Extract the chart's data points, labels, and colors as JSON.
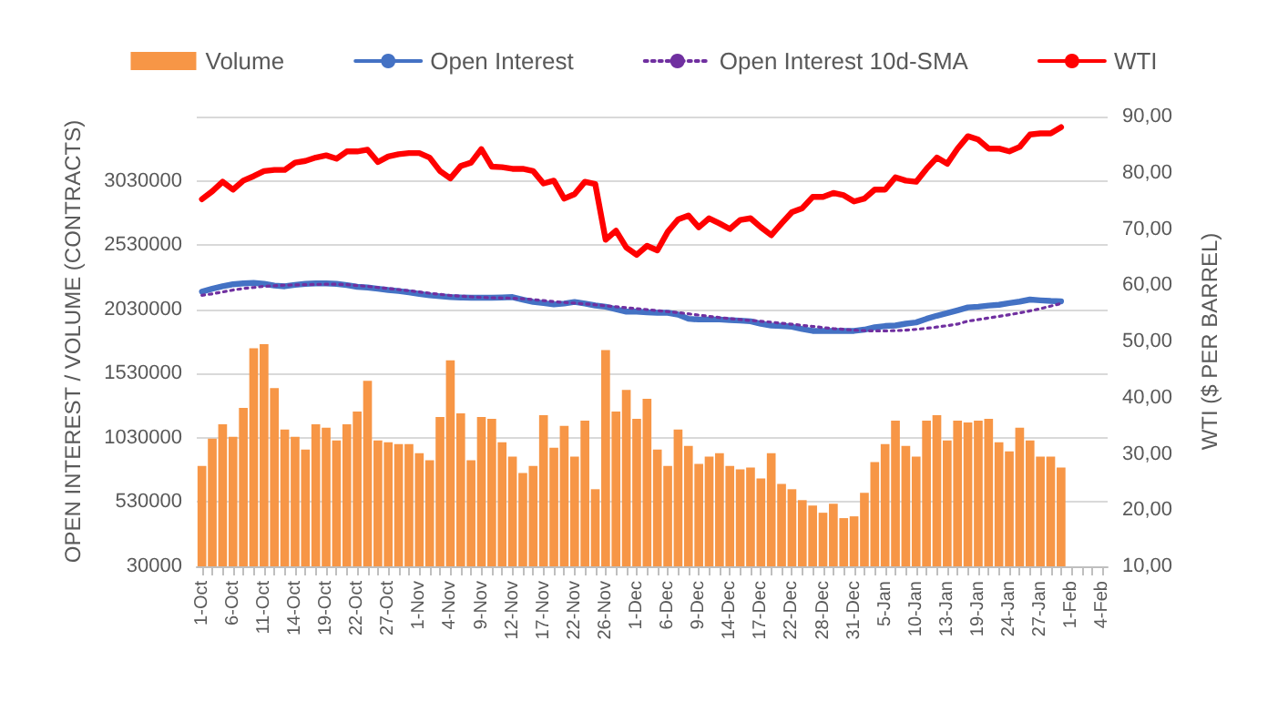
{
  "chart_data": {
    "type": "bar",
    "xlabel": null,
    "ylabel": "OPEN INTEREST / VOLUME (CONTRACTS)",
    "y2label": "WTI ($ PER BARREL)",
    "categories": [
      "1-Oct",
      null,
      null,
      "6-Oct",
      null,
      null,
      "11-Oct",
      null,
      null,
      "14-Oct",
      null,
      null,
      "19-Oct",
      null,
      null,
      "22-Oct",
      null,
      null,
      "27-Oct",
      null,
      null,
      "1-Nov",
      null,
      null,
      "4-Nov",
      null,
      null,
      "9-Nov",
      null,
      null,
      "12-Nov",
      null,
      null,
      "17-Nov",
      null,
      null,
      "22-Nov",
      null,
      null,
      "26-Nov",
      null,
      null,
      "1-Dec",
      null,
      null,
      "6-Dec",
      null,
      null,
      "9-Dec",
      null,
      null,
      "14-Dec",
      null,
      null,
      "17-Dec",
      null,
      null,
      "22-Dec",
      null,
      null,
      "28-Dec",
      null,
      null,
      "31-Dec",
      null,
      null,
      "5-Jan",
      null,
      null,
      "10-Jan",
      null,
      null,
      "13-Jan",
      null,
      null,
      "19-Jan",
      null,
      null,
      "24-Jan",
      null,
      null,
      "27-Jan",
      null,
      null,
      "1-Feb",
      null,
      null,
      "4-Feb"
    ],
    "series": [
      {
        "name": "Volume",
        "color": "#f79646",
        "values": [
          812000,
          1023000,
          1136000,
          1037000,
          1262000,
          1726000,
          1759000,
          1417000,
          1094000,
          1037000,
          939000,
          1136000,
          1108000,
          1009000,
          1136000,
          1234000,
          1473000,
          1009000,
          995000,
          981000,
          981000,
          911000,
          855000,
          1192000,
          1633000,
          1220000,
          855000,
          1192000,
          1178000,
          995000,
          883000,
          756000,
          812000,
          1206000,
          953000,
          1122000,
          883000,
          1164000,
          630000,
          1712000,
          1234000,
          1403000,
          1178000,
          1333000,
          939000,
          812000,
          1094000,
          967000,
          827000,
          883000,
          911000,
          812000,
          784000,
          798000,
          714000,
          911000,
          672000,
          630000,
          545000,
          503000,
          447000,
          517000,
          405000,
          419000,
          602000,
          841000,
          981000,
          1164000,
          967000,
          883000,
          1164000,
          1206000,
          1009000,
          1164000,
          1150000,
          1164000,
          1178000,
          995000,
          925000,
          1108000,
          1009000,
          883000,
          883000,
          798000,
          null,
          null,
          null,
          null
        ]
      },
      {
        "name": "Open Interest",
        "type": "line",
        "color": "#4472c4",
        "line_style": "solid",
        "values": [
          2167000,
          2190000,
          2209000,
          2225000,
          2232000,
          2235000,
          2228000,
          2215000,
          2209000,
          2220000,
          2228000,
          2232000,
          2232000,
          2228000,
          2218000,
          2205000,
          2200000,
          2190000,
          2180000,
          2172000,
          2162000,
          2150000,
          2139000,
          2132000,
          2125000,
          2122000,
          2120000,
          2120000,
          2120000,
          2122000,
          2125000,
          2105000,
          2087000,
          2078000,
          2068000,
          2075000,
          2087000,
          2075000,
          2060000,
          2050000,
          2030000,
          2012000,
          2012000,
          2007000,
          2003000,
          2003000,
          1989000,
          1956000,
          1951000,
          1951000,
          1951000,
          1946000,
          1942000,
          1937000,
          1918000,
          1904000,
          1900000,
          1895000,
          1876000,
          1862000,
          1862000,
          1862000,
          1862000,
          1862000,
          1872000,
          1890000,
          1900000,
          1904000,
          1918000,
          1928000,
          1956000,
          1980000,
          2000000,
          2022000,
          2045000,
          2050000,
          2059000,
          2065000,
          2078000,
          2090000,
          2106000,
          2100000,
          2095000,
          2092000,
          null,
          null,
          null,
          null
        ]
      },
      {
        "name": "Open Interest 10d-SMA",
        "type": "line",
        "color": "#7030a0",
        "line_style": "dotted",
        "values": [
          2139000,
          2150000,
          2165000,
          2180000,
          2192000,
          2200000,
          2209000,
          2213000,
          2218000,
          2220000,
          2222000,
          2224000,
          2225000,
          2225000,
          2222000,
          2215000,
          2208000,
          2200000,
          2192000,
          2183000,
          2175000,
          2165000,
          2155000,
          2146000,
          2138000,
          2132000,
          2127000,
          2123000,
          2120000,
          2118000,
          2116000,
          2112000,
          2105000,
          2098000,
          2090000,
          2083000,
          2078000,
          2072000,
          2065000,
          2058000,
          2050000,
          2042000,
          2035000,
          2028000,
          2020000,
          2012000,
          2005000,
          1995000,
          1985000,
          1975000,
          1966000,
          1958000,
          1950000,
          1943000,
          1937000,
          1930000,
          1922000,
          1914000,
          1905000,
          1897000,
          1888000,
          1880000,
          1874000,
          1868000,
          1864000,
          1862000,
          1862000,
          1864000,
          1868000,
          1874000,
          1882000,
          1892000,
          1903000,
          1915000,
          1938000,
          1950000,
          1962000,
          1975000,
          1988000,
          2002000,
          2018000,
          2035000,
          2055000,
          2075000,
          null,
          null,
          null,
          null
        ]
      },
      {
        "name": "WTI",
        "type": "line",
        "axis": "y2",
        "color": "#ff0000",
        "line_style": "solid",
        "values": [
          75.3,
          76.7,
          78.4,
          77.0,
          78.6,
          79.4,
          80.3,
          80.5,
          80.5,
          81.8,
          82.1,
          82.7,
          83.1,
          82.5,
          83.8,
          83.8,
          84.1,
          81.9,
          82.9,
          83.3,
          83.5,
          83.5,
          82.7,
          80.3,
          79.0,
          81.2,
          81.8,
          84.2,
          81.1,
          81.0,
          80.7,
          80.7,
          80.3,
          78.1,
          78.6,
          75.4,
          76.2,
          78.4,
          78.0,
          68.1,
          69.7,
          66.7,
          65.4,
          67.0,
          66.2,
          69.5,
          71.7,
          72.4,
          70.3,
          71.9,
          71.0,
          70.0,
          71.6,
          71.9,
          70.3,
          68.9,
          71.0,
          73.0,
          73.7,
          75.7,
          75.7,
          76.4,
          76.0,
          74.9,
          75.4,
          77.0,
          77.0,
          79.2,
          78.6,
          78.4,
          80.7,
          82.7,
          81.6,
          84.3,
          86.5,
          85.9,
          84.3,
          84.3,
          83.8,
          84.6,
          86.8,
          87.0,
          87.0,
          88.1,
          null,
          null,
          null,
          null
        ]
      }
    ],
    "ylim": [
      30000,
      3530000
    ],
    "yticks": [
      30000,
      530000,
      1030000,
      1530000,
      2030000,
      2530000,
      3030000,
      {
        "value": 3530000,
        "label": null
      }
    ],
    "y2lim": [
      10,
      90
    ],
    "y2ticks": [
      {
        "value": 10,
        "label": "10,00"
      },
      {
        "value": 20,
        "label": "20,00"
      },
      {
        "value": 30,
        "label": "30,00"
      },
      {
        "value": 40,
        "label": "40,00"
      },
      {
        "value": 50,
        "label": "50,00"
      },
      {
        "value": 60,
        "label": "60,00"
      },
      {
        "value": 70,
        "label": "70,00"
      },
      {
        "value": 80,
        "label": "80,00"
      },
      {
        "value": 90,
        "label": "90,00"
      }
    ],
    "grid": "y",
    "legend": "top",
    "marker": "none"
  }
}
